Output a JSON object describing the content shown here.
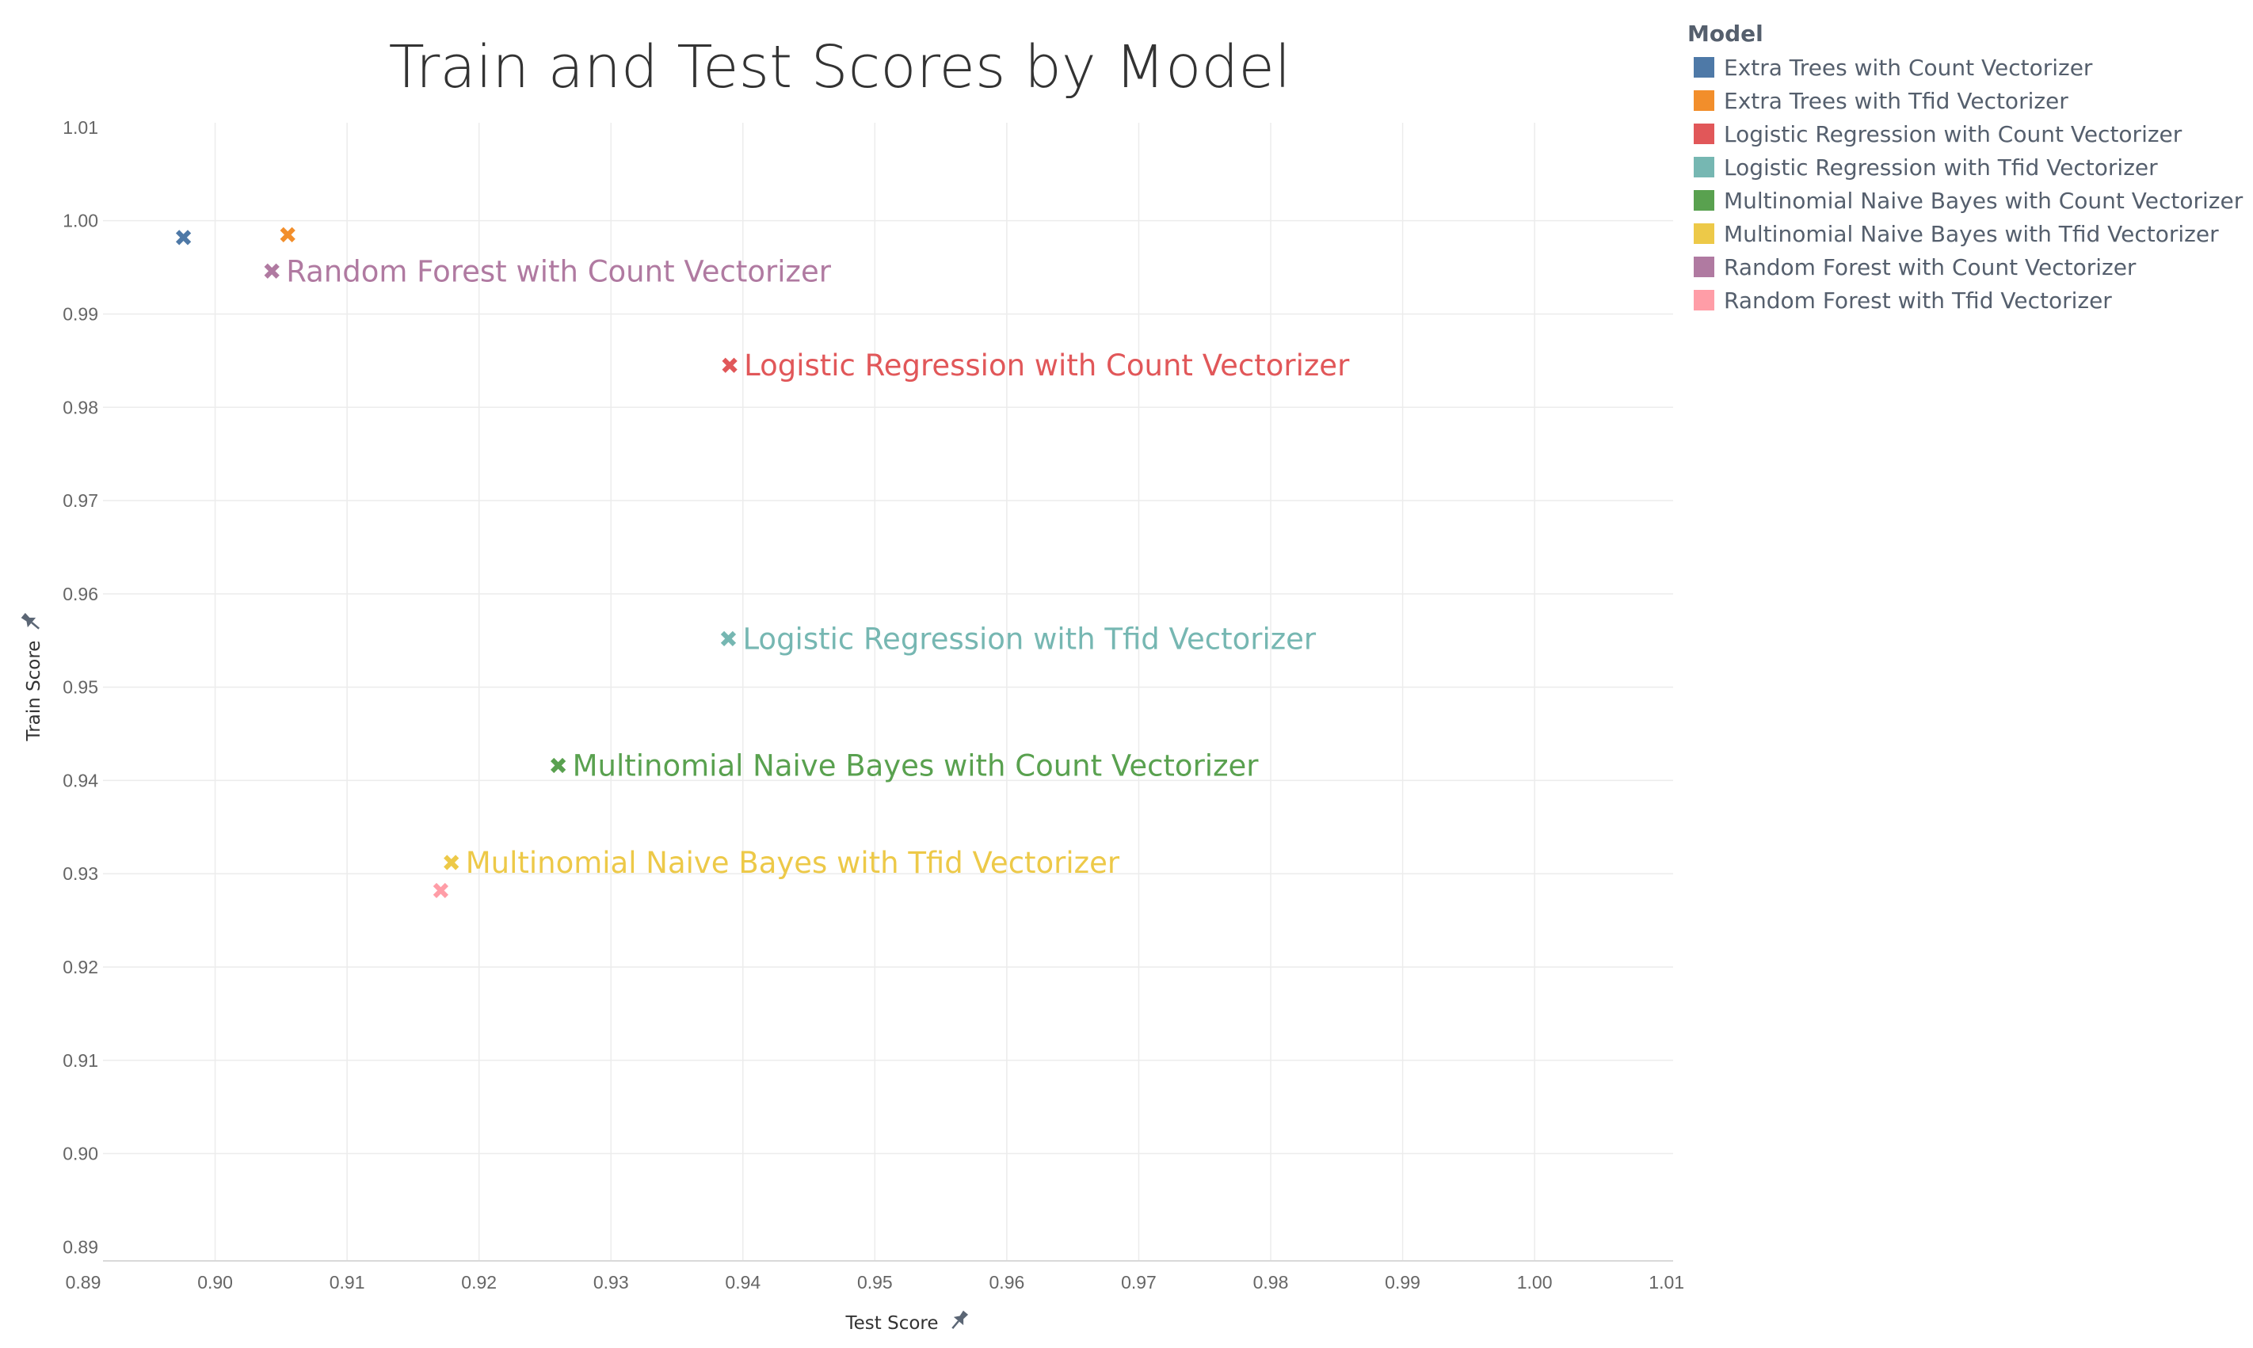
{
  "chart_data": {
    "type": "scatter",
    "title": "Train and Test Scores by Model",
    "xlabel": "Test Score",
    "ylabel": "Train Score",
    "xlim": [
      0.8915,
      1.0105
    ],
    "ylim": [
      0.8885,
      1.0105
    ],
    "x_ticks": [
      "0.89",
      "0.90",
      "0.91",
      "0.92",
      "0.93",
      "0.94",
      "0.95",
      "0.96",
      "0.97",
      "0.98",
      "0.99",
      "1.00",
      "1.01"
    ],
    "y_ticks": [
      "0.89",
      "0.90",
      "0.91",
      "0.92",
      "0.93",
      "0.94",
      "0.95",
      "0.96",
      "0.97",
      "0.98",
      "0.99",
      "1.00",
      "1.01"
    ],
    "grid": true,
    "marker": "x",
    "legend_placement": "right",
    "legend_title": "Model",
    "series": [
      {
        "name": "Extra Trees with Count Vectorizer",
        "color": "#4e79a7",
        "x": 0.8976,
        "y": 0.9982,
        "label": ""
      },
      {
        "name": "Extra Trees with Tfid Vectorizer",
        "color": "#f28e2b",
        "x": 0.9055,
        "y": 0.9985,
        "label": ""
      },
      {
        "name": "Logistic Regression with Count Vectorizer",
        "color": "#e15759",
        "x": 0.939,
        "y": 0.9845,
        "label": "Logistic Regression with Count Vectorizer"
      },
      {
        "name": "Logistic Regression with Tfid Vectorizer",
        "color": "#76b7b2",
        "x": 0.9389,
        "y": 0.9552,
        "label": "Logistic Regression with Tfid Vectorizer"
      },
      {
        "name": "Multinomial Naive Bayes with Count Vectorizer",
        "color": "#59a14f",
        "x": 0.926,
        "y": 0.9416,
        "label": "Multinomial Naive Bayes with Count Vectorizer"
      },
      {
        "name": "Multinomial Naive Bayes with Tfid Vectorizer",
        "color": "#edc948",
        "x": 0.9179,
        "y": 0.9312,
        "label": "Multinomial Naive Bayes with Tfid Vectorizer"
      },
      {
        "name": "Random Forest with Count Vectorizer",
        "color": "#b07aa1",
        "x": 0.9043,
        "y": 0.9946,
        "label": "Random Forest with Count Vectorizer"
      },
      {
        "name": "Random Forest with Tfid Vectorizer",
        "color": "#ff9da7",
        "x": 0.9171,
        "y": 0.9282,
        "label": ""
      }
    ]
  },
  "icons": {
    "x_axis_pin": "pin-icon",
    "y_axis_pin": "pin-icon"
  }
}
